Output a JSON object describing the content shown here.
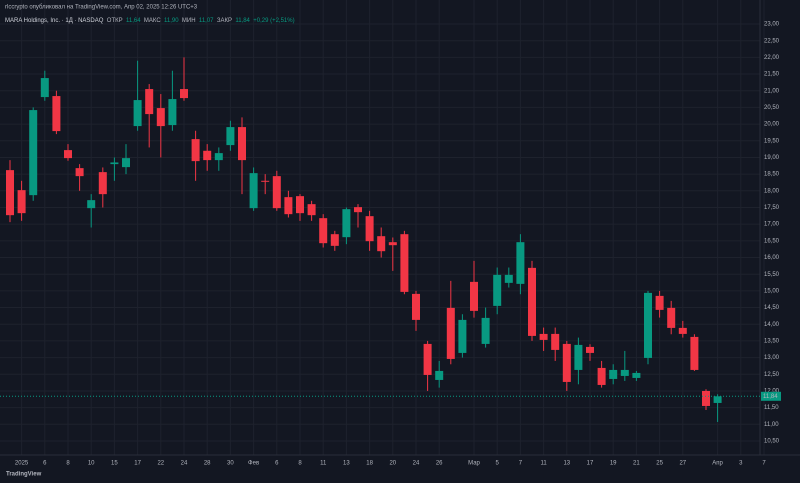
{
  "header": {
    "publisher": "rlccrypto опубликовал на TradingView.com, Апр 02, 2025 12:26 UTC+3"
  },
  "chart_data": {
    "type": "candlestick",
    "title": "MARA Holdings, Inc. · 1Д · NASDAQ",
    "ohlc_legend": [
      {
        "label": "ОТКР",
        "value": "11,64"
      },
      {
        "label": "МАКС",
        "value": "11,90"
      },
      {
        "label": "МИН",
        "value": "11,07"
      },
      {
        "label": "ЗАКР",
        "value": "11,84"
      }
    ],
    "change": "+0,29 (+2,51%)",
    "categories": [
      null,
      "2025",
      null,
      "6",
      null,
      "8",
      null,
      "10",
      null,
      "15",
      null,
      "17",
      null,
      "22",
      null,
      "24",
      null,
      "28",
      null,
      "30",
      null,
      "Фев",
      null,
      "6",
      null,
      "8",
      null,
      "11",
      null,
      "13",
      null,
      "18",
      null,
      "20",
      null,
      "24",
      null,
      "26",
      null,
      null,
      "Мар",
      null,
      "5",
      null,
      "7",
      null,
      "11",
      null,
      "13",
      null,
      "17",
      null,
      "19",
      null,
      "21",
      null,
      "25",
      null,
      "27",
      null,
      null,
      "Апр",
      null,
      "3",
      null,
      "7"
    ],
    "open": [
      18.62,
      18.02,
      17.87,
      20.81,
      20.84,
      19.22,
      18.68,
      17.48,
      18.56,
      18.8,
      18.71,
      19.94,
      21.05,
      20.48,
      19.97,
      21.05,
      19.55,
      19.2,
      18.92,
      19.37,
      19.91,
      17.48,
      18.3,
      18.44,
      17.81,
      17.84,
      17.6,
      17.18,
      16.7,
      16.61,
      17.51,
      17.24,
      16.64,
      16.46,
      16.7,
      14.91,
      13.41,
      12.33,
      14.49,
      13.14,
      15.27,
      13.41,
      14.55,
      15.24,
      15.21,
      15.69,
      13.71,
      13.71,
      13.41,
      12.63,
      13.32,
      12.69,
      12.36,
      12.45,
      12.39,
      12.99,
      14.85,
      14.49,
      13.89,
      13.62,
      12.0,
      11.64,
      null,
      null,
      null,
      null
    ],
    "high": [
      18.92,
      18.3,
      20.5,
      21.6,
      21.0,
      19.4,
      18.8,
      17.9,
      18.7,
      19.0,
      19.4,
      21.9,
      21.2,
      20.9,
      21.6,
      22.0,
      19.8,
      19.4,
      19.3,
      20.1,
      20.2,
      18.7,
      18.5,
      18.6,
      18.0,
      17.9,
      17.7,
      17.3,
      16.8,
      17.5,
      17.6,
      17.4,
      16.9,
      16.6,
      16.8,
      15.0,
      13.5,
      12.9,
      15.3,
      14.3,
      15.9,
      14.5,
      15.7,
      15.7,
      16.7,
      15.9,
      13.9,
      13.9,
      13.5,
      13.6,
      13.4,
      12.9,
      12.8,
      13.2,
      12.6,
      15.0,
      15.0,
      14.7,
      14.1,
      13.7,
      12.05,
      11.9,
      null,
      null,
      null,
      null
    ],
    "low": [
      17.06,
      17.1,
      17.7,
      20.7,
      19.7,
      18.9,
      18.0,
      16.9,
      17.5,
      18.3,
      18.5,
      19.8,
      19.3,
      19.0,
      19.8,
      20.7,
      18.3,
      18.6,
      18.6,
      19.2,
      17.9,
      17.4,
      17.9,
      17.4,
      17.2,
      17.1,
      17.1,
      16.3,
      16.2,
      16.4,
      16.9,
      16.2,
      16.0,
      15.6,
      14.9,
      13.8,
      12.0,
      12.1,
      12.8,
      13.0,
      14.2,
      13.3,
      14.3,
      15.1,
      14.9,
      13.5,
      13.2,
      12.9,
      12.0,
      12.2,
      12.9,
      12.1,
      12.2,
      12.3,
      12.3,
      12.8,
      14.2,
      13.7,
      13.6,
      12.6,
      11.43,
      11.07,
      null,
      null,
      null,
      null
    ],
    "close": [
      17.27,
      17.33,
      20.42,
      21.38,
      19.79,
      18.98,
      18.44,
      17.72,
      17.9,
      18.85,
      18.98,
      20.72,
      20.3,
      19.94,
      20.75,
      20.78,
      18.89,
      18.92,
      19.13,
      19.91,
      18.92,
      18.53,
      18.28,
      17.48,
      17.3,
      17.33,
      17.27,
      16.43,
      16.35,
      17.45,
      17.36,
      16.49,
      16.19,
      16.37,
      14.97,
      14.13,
      12.48,
      12.6,
      12.96,
      14.13,
      14.4,
      14.19,
      15.48,
      15.48,
      16.46,
      13.65,
      13.53,
      13.23,
      12.27,
      13.38,
      13.14,
      12.18,
      12.63,
      12.63,
      12.54,
      14.94,
      14.43,
      13.89,
      13.71,
      12.63,
      11.55,
      11.84,
      null,
      null,
      null,
      null
    ],
    "up_color": "#089981",
    "down_color": "#f23645",
    "last_price": {
      "value": 11.84,
      "label": "11,84"
    },
    "ylim": [
      10.08,
      23.72
    ],
    "yticks": [
      {
        "value": 10.5,
        "label": "10,50"
      },
      {
        "value": 11,
        "label": "11,00"
      },
      {
        "value": 11.5,
        "label": "11,50"
      },
      {
        "value": 12,
        "label": "12,00"
      },
      {
        "value": 12.5,
        "label": "12,50"
      },
      {
        "value": 13,
        "label": "13,00"
      },
      {
        "value": 13.5,
        "label": "13,50"
      },
      {
        "value": 14,
        "label": "14,00"
      },
      {
        "value": 14.5,
        "label": "14,50"
      },
      {
        "value": 15,
        "label": "15,00"
      },
      {
        "value": 15.5,
        "label": "15,50"
      },
      {
        "value": 16,
        "label": "16,00"
      },
      {
        "value": 16.5,
        "label": "16,50"
      },
      {
        "value": 17,
        "label": "17,00"
      },
      {
        "value": 17.5,
        "label": "17,50"
      },
      {
        "value": 18,
        "label": "18,00"
      },
      {
        "value": 18.5,
        "label": "18,50"
      },
      {
        "value": 19,
        "label": "19,00"
      },
      {
        "value": 19.5,
        "label": "19,50"
      },
      {
        "value": 20,
        "label": "20,00"
      },
      {
        "value": 20.5,
        "label": "20,50"
      },
      {
        "value": 21,
        "label": "21,00"
      },
      {
        "value": 21.5,
        "label": "21,50"
      },
      {
        "value": 22,
        "label": "22,00"
      },
      {
        "value": 22.5,
        "label": "22,50"
      },
      {
        "value": 23,
        "label": "23,00"
      }
    ],
    "grid": true,
    "footer": "TradingView"
  }
}
